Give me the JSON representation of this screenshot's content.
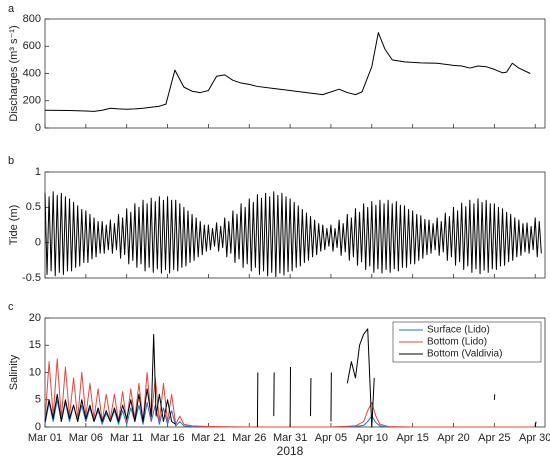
{
  "chart_data": [
    {
      "type": "line",
      "panel_label": "a",
      "ylabel": "Discharges (m³ s⁻¹)",
      "color": "#000000",
      "xlim": [
        0,
        61.2
      ],
      "xticks": [
        0,
        5,
        10,
        15,
        20,
        25,
        30,
        35,
        40,
        45,
        50,
        55,
        60
      ],
      "ylim": [
        0,
        800
      ],
      "yticks": [
        0,
        200,
        400,
        600,
        800
      ],
      "x": [
        0,
        3,
        5,
        6,
        7,
        8,
        9,
        10,
        11,
        12,
        14,
        14.8,
        15.9,
        17,
        18,
        19,
        20,
        21,
        22,
        23,
        24,
        25,
        26,
        28,
        30,
        32,
        34,
        36,
        37,
        38,
        38.8,
        40,
        40.8,
        41.6,
        42.5,
        44,
        46,
        48,
        50,
        51,
        52,
        53,
        54,
        55,
        56,
        56.5,
        57.2,
        58,
        59.4
      ],
      "values": [
        130,
        128,
        125,
        122,
        130,
        145,
        140,
        138,
        140,
        145,
        160,
        175,
        425,
        300,
        270,
        260,
        275,
        380,
        390,
        350,
        330,
        320,
        305,
        290,
        275,
        260,
        245,
        285,
        260,
        245,
        265,
        450,
        700,
        580,
        500,
        485,
        478,
        475,
        460,
        455,
        440,
        455,
        450,
        430,
        405,
        410,
        475,
        440,
        400
      ]
    },
    {
      "type": "line",
      "panel_label": "b",
      "ylabel": "Tide (m)",
      "color": "#000000",
      "xlim": [
        0,
        61.2
      ],
      "xticks": [
        0,
        5,
        10,
        15,
        20,
        25,
        30,
        35,
        40,
        45,
        50,
        55,
        60
      ],
      "ylim": [
        -0.5,
        1
      ],
      "yticks": [
        -0.5,
        0,
        0.5,
        1
      ],
      "x": [
        0,
        0.25,
        0.5,
        0.75,
        1,
        1.25,
        1.5,
        1.75,
        2,
        2.25,
        2.5,
        2.75,
        3,
        3.25,
        3.5,
        3.75,
        4,
        4.25,
        4.5,
        4.75,
        5,
        5.25,
        5.5,
        5.75,
        6,
        6.25,
        6.5,
        6.75,
        7,
        7.25,
        7.5,
        7.75,
        8,
        8.25,
        8.5,
        8.75,
        9,
        9.25,
        9.5,
        9.75,
        10,
        10.25,
        10.5,
        10.75,
        11,
        11.25,
        11.5,
        11.75,
        12,
        12.25,
        12.5,
        12.75,
        13,
        13.25,
        13.5,
        13.75,
        14,
        14.25,
        14.5,
        14.75,
        15,
        15.25,
        15.5,
        15.75,
        16,
        16.25,
        16.5,
        16.75,
        17,
        17.25,
        17.5,
        17.75,
        18,
        18.25,
        18.5,
        18.75,
        19,
        19.25,
        19.5,
        19.75,
        20,
        20.25,
        20.5,
        20.75,
        21,
        21.25,
        21.5,
        21.75,
        22,
        22.25,
        22.5,
        22.75,
        23,
        23.25,
        23.5,
        23.75,
        24,
        24.25,
        24.5,
        24.75,
        25,
        25.25,
        25.5,
        25.75,
        26,
        26.25,
        26.5,
        26.75,
        27,
        27.25,
        27.5,
        27.75,
        28,
        28.25,
        28.5,
        28.75,
        29,
        29.25,
        29.5,
        29.75,
        30,
        30.25,
        30.5,
        30.75,
        31,
        31.25,
        31.5,
        31.75,
        32,
        32.25,
        32.5,
        32.75,
        33,
        33.25,
        33.5,
        33.75,
        34,
        34.25,
        34.5,
        34.75,
        35,
        35.25,
        35.5,
        35.75,
        36,
        36.25,
        36.5,
        36.75,
        37,
        37.25,
        37.5,
        37.75,
        38,
        38.25,
        38.5,
        38.75,
        39,
        39.25,
        39.5,
        39.75,
        40,
        40.25,
        40.5,
        40.75,
        41,
        41.25,
        41.5,
        41.75,
        42,
        42.25,
        42.5,
        42.75,
        43,
        43.25,
        43.5,
        43.75,
        44,
        44.25,
        44.5,
        44.75,
        45,
        45.25,
        45.5,
        45.75,
        46,
        46.25,
        46.5,
        46.75,
        47,
        47.25,
        47.5,
        47.75,
        48,
        48.25,
        48.5,
        48.75,
        49,
        49.25,
        49.5,
        49.75,
        50,
        50.25,
        50.5,
        50.75,
        51,
        51.25,
        51.5,
        51.75,
        52,
        52.25,
        52.5,
        52.75,
        53,
        53.25,
        53.5,
        53.75,
        54,
        54.25,
        54.5,
        54.75,
        55,
        55.25,
        55.5,
        55.75,
        56,
        56.25,
        56.5,
        56.75,
        57,
        57.25,
        57.5,
        57.75,
        58,
        58.25,
        58.5,
        58.75,
        59,
        59.25,
        59.5,
        59.75,
        60,
        60.25,
        60.5,
        60.75
      ],
      "values": [
        0.7,
        -0.45,
        0.65,
        -0.4,
        0.72,
        -0.47,
        0.67,
        -0.42,
        0.7,
        -0.45,
        0.65,
        -0.4,
        0.62,
        -0.4,
        0.57,
        -0.35,
        0.52,
        -0.33,
        0.47,
        -0.28,
        0.45,
        -0.28,
        0.4,
        -0.23,
        0.35,
        -0.2,
        0.3,
        -0.15,
        0.3,
        -0.15,
        0.25,
        -0.1,
        0.32,
        -0.15,
        0.27,
        -0.1,
        0.4,
        -0.22,
        0.35,
        -0.17,
        0.48,
        -0.3,
        0.43,
        -0.25,
        0.55,
        -0.35,
        0.5,
        -0.3,
        0.6,
        -0.4,
        0.55,
        -0.35,
        0.63,
        -0.42,
        0.58,
        -0.37,
        0.65,
        -0.43,
        0.6,
        -0.38,
        0.65,
        -0.43,
        0.6,
        -0.38,
        0.6,
        -0.4,
        0.55,
        -0.35,
        0.5,
        -0.33,
        0.45,
        -0.28,
        0.4,
        -0.25,
        0.35,
        -0.2,
        0.3,
        -0.17,
        0.25,
        -0.12,
        0.25,
        -0.1,
        0.2,
        -0.05,
        0.28,
        -0.12,
        0.23,
        -0.07,
        0.35,
        -0.2,
        0.3,
        -0.15,
        0.45,
        -0.28,
        0.4,
        -0.23,
        0.55,
        -0.35,
        0.5,
        -0.3,
        0.62,
        -0.4,
        0.57,
        -0.35,
        0.68,
        -0.45,
        0.63,
        -0.4,
        0.7,
        -0.47,
        0.65,
        -0.42,
        0.72,
        -0.48,
        0.67,
        -0.43,
        0.7,
        -0.46,
        0.65,
        -0.41,
        0.62,
        -0.4,
        0.57,
        -0.35,
        0.52,
        -0.33,
        0.47,
        -0.28,
        0.42,
        -0.25,
        0.37,
        -0.2,
        0.32,
        -0.17,
        0.27,
        -0.12,
        0.25,
        -0.1,
        0.2,
        -0.05,
        0.25,
        -0.12,
        0.2,
        -0.07,
        0.32,
        -0.18,
        0.27,
        -0.13,
        0.4,
        -0.25,
        0.35,
        -0.2,
        0.48,
        -0.32,
        0.43,
        -0.27,
        0.55,
        -0.38,
        0.5,
        -0.33,
        0.58,
        -0.42,
        0.53,
        -0.37,
        0.6,
        -0.43,
        0.55,
        -0.38,
        0.6,
        -0.42,
        0.55,
        -0.37,
        0.58,
        -0.4,
        0.53,
        -0.35,
        0.52,
        -0.35,
        0.47,
        -0.3,
        0.45,
        -0.3,
        0.4,
        -0.25,
        0.38,
        -0.22,
        0.33,
        -0.17,
        0.32,
        -0.15,
        0.27,
        -0.1,
        0.35,
        -0.18,
        0.3,
        -0.13,
        0.42,
        -0.25,
        0.37,
        -0.2,
        0.5,
        -0.32,
        0.45,
        -0.27,
        0.56,
        -0.38,
        0.51,
        -0.33,
        0.6,
        -0.42,
        0.55,
        -0.37,
        0.62,
        -0.44,
        0.57,
        -0.39,
        0.6,
        -0.42,
        0.55,
        -0.37,
        0.55,
        -0.38,
        0.5,
        -0.33,
        0.48,
        -0.32,
        0.43,
        -0.27,
        0.4,
        -0.25,
        0.35,
        -0.2,
        0.32,
        -0.18,
        0.27,
        -0.13,
        0.28,
        -0.15,
        0.23,
        -0.1,
        0.35,
        -0.2,
        0.3,
        -0.15
      ]
    },
    {
      "type": "line",
      "panel_label": "c",
      "ylabel": "Salinity",
      "xlabel": "2018",
      "legend": "upper right",
      "xlim": [
        0,
        61.2
      ],
      "xticks": [
        {
          "value": 0,
          "label": "Mar 01"
        },
        {
          "value": 5,
          "label": "Mar 06"
        },
        {
          "value": 10,
          "label": "Mar 11"
        },
        {
          "value": 15,
          "label": "Mar 16"
        },
        {
          "value": 20,
          "label": "Mar 21"
        },
        {
          "value": 25,
          "label": "Mar 26"
        },
        {
          "value": 30,
          "label": "Mar 31"
        },
        {
          "value": 35,
          "label": "Apr 05"
        },
        {
          "value": 40,
          "label": "Apr 10"
        },
        {
          "value": 45,
          "label": "Apr 15"
        },
        {
          "value": 50,
          "label": "Apr 20"
        },
        {
          "value": 55,
          "label": "Apr 25"
        },
        {
          "value": 60,
          "label": "Apr 30"
        }
      ],
      "ylim": [
        0,
        20
      ],
      "yticks": [
        0,
        5,
        10,
        15,
        20
      ],
      "series": [
        {
          "name": "Surface (Lido)",
          "color": "#1f6fd1",
          "x": [
            0,
            0.5,
            1,
            1.5,
            2,
            2.5,
            3,
            3.5,
            4,
            4.5,
            5,
            5.5,
            6,
            6.5,
            7,
            7.5,
            8,
            8.5,
            9,
            9.5,
            10,
            10.5,
            11,
            11.5,
            12,
            12.5,
            13,
            13.5,
            14,
            14.5,
            15,
            15.5,
            16,
            16.5,
            17,
            18,
            20,
            25,
            30,
            35,
            38,
            39,
            39.5,
            40,
            40.5,
            41,
            42,
            45,
            50,
            55,
            60
          ],
          "values": [
            0.5,
            4.5,
            1,
            5,
            1,
            4.5,
            1,
            4,
            1,
            4,
            1,
            3.5,
            1,
            3,
            0.5,
            2.5,
            1,
            3,
            0.5,
            3,
            0.5,
            3.5,
            1,
            4,
            0.5,
            4.5,
            1,
            4,
            0.5,
            3.5,
            0.5,
            3,
            0.2,
            1,
            0.2,
            0.1,
            0,
            0,
            0,
            0,
            0.1,
            0.3,
            1,
            2,
            0.8,
            0.2,
            0,
            0,
            0,
            0,
            0
          ]
        },
        {
          "name": "Bottom (Lido)",
          "color": "#e3473f",
          "x": [
            0,
            0.5,
            1,
            1.5,
            2,
            2.5,
            3,
            3.5,
            4,
            4.5,
            5,
            5.5,
            6,
            6.5,
            7,
            7.5,
            8,
            8.5,
            9,
            9.5,
            10,
            10.5,
            11,
            11.5,
            12,
            12.5,
            13,
            13.5,
            14,
            14.5,
            15,
            15.5,
            16,
            16.5,
            17,
            18,
            20,
            25,
            30,
            35,
            38,
            39,
            39.5,
            40,
            40.5,
            41,
            42,
            45,
            50,
            55,
            60
          ],
          "values": [
            1,
            12,
            2,
            12.5,
            1.5,
            11,
            2,
            9,
            1.5,
            10,
            2,
            8,
            1.5,
            7,
            1,
            6,
            1.5,
            6,
            1,
            6.5,
            1,
            7,
            1.5,
            8,
            1,
            10,
            1.5,
            9,
            1,
            8,
            1,
            6,
            0.5,
            2,
            0.5,
            0.2,
            0.1,
            0,
            0,
            0,
            0.2,
            1,
            3,
            4.5,
            2,
            0.5,
            0.1,
            0,
            0,
            0,
            0
          ]
        },
        {
          "name": "Bottom (Valdivia)",
          "color": "#000000",
          "x": [
            0,
            0.5,
            1,
            1.5,
            2,
            2.5,
            3,
            3.5,
            4,
            4.5,
            5,
            5.5,
            6,
            6.5,
            7,
            7.5,
            8,
            8.5,
            9,
            9.5,
            10,
            10.5,
            11,
            11.5,
            12,
            12.5,
            13,
            13.3,
            13.6,
            14,
            14.5,
            15,
            15.5,
            16,
            16.5,
            26,
            26.05,
            26.1,
            28,
            28.05,
            28.1,
            30,
            30.05,
            30.1,
            32.5,
            32.55,
            32.6,
            35,
            35.05,
            35.1,
            37,
            37.5,
            38,
            38.5,
            39,
            39.5,
            40,
            40.3,
            40.4,
            55,
            55.05,
            55.1,
            60,
            60.1
          ],
          "values": [
            1,
            5,
            1.5,
            6,
            1,
            5,
            1.5,
            4,
            1,
            5,
            1.5,
            4,
            1,
            3.5,
            1,
            3,
            1,
            3.5,
            1,
            4,
            1.5,
            5,
            1,
            6,
            1,
            7,
            2,
            17,
            2,
            6,
            1,
            5,
            1,
            0.5,
            null,
            0,
            10,
            null,
            2,
            10,
            null,
            0,
            11,
            null,
            2,
            9,
            null,
            1,
            10,
            null,
            8,
            12,
            9,
            15,
            17,
            18,
            0,
            9,
            null,
            5,
            6,
            null,
            0,
            1
          ]
        }
      ]
    }
  ]
}
